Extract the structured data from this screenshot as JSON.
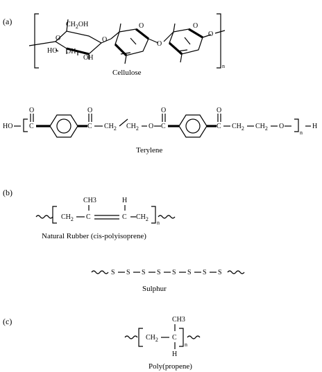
{
  "panels": {
    "a": "(a)",
    "b": "(b)",
    "c": "(c)"
  },
  "cellulose": {
    "name": "Cellulose",
    "ch2oh": "CH",
    "ch2oh_sub": "2",
    "ch2oh_tail": "OH",
    "ho": "HO",
    "oh": "OH",
    "o": "O",
    "n": "n"
  },
  "terylene": {
    "name": "Terylene",
    "ho": "HO",
    "c": "C",
    "o": "O",
    "ch2": "CH",
    "sub2": "2",
    "h": "H",
    "n": "n"
  },
  "rubber": {
    "name": "Natural Rubber (cis-polyisoprene)",
    "ch2": "CH",
    "sub2": "2",
    "c": "C",
    "ch3": "CH3",
    "h": "H",
    "n": "n"
  },
  "sulphur": {
    "name": "Sulphur",
    "s": "S"
  },
  "propene": {
    "name": "Poly(propene)",
    "ch2": "CH",
    "sub2": "2",
    "c": "C",
    "ch3": "CH3",
    "h": "H",
    "n": "n"
  }
}
